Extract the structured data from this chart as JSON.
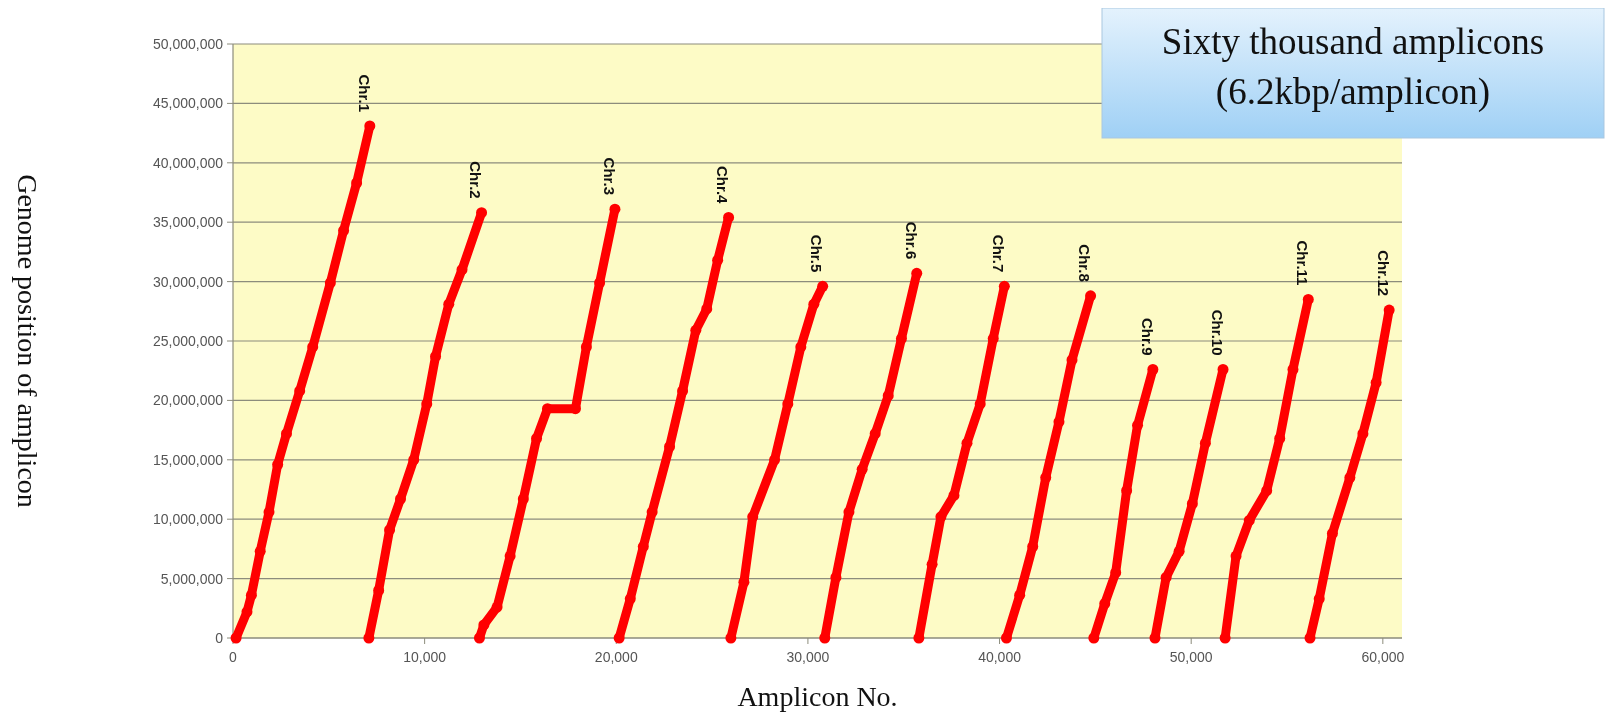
{
  "chart_data": {
    "type": "line",
    "marker": "circle",
    "xlabel": "Amplicon No.",
    "ylabel": "Genome position of amplicon",
    "grid": "y",
    "xlim": [
      0,
      61000
    ],
    "ylim": [
      0,
      50000000
    ],
    "xticks": [
      {
        "value": 0,
        "label": "0"
      },
      {
        "value": 10000,
        "label": "10,000"
      },
      {
        "value": 20000,
        "label": "20,000"
      },
      {
        "value": 30000,
        "label": "30,000"
      },
      {
        "value": 40000,
        "label": "40,000"
      },
      {
        "value": 50000,
        "label": "50,000"
      },
      {
        "value": 60000,
        "label": "60,000"
      }
    ],
    "yticks": [
      {
        "value": 0,
        "label": "0"
      },
      {
        "value": 5000000,
        "label": "5,000,000"
      },
      {
        "value": 10000000,
        "label": "10,000,000"
      },
      {
        "value": 15000000,
        "label": "15,000,000"
      },
      {
        "value": 20000000,
        "label": "20,000,000"
      },
      {
        "value": 25000000,
        "label": "25,000,000"
      },
      {
        "value": 30000000,
        "label": "30,000,000"
      },
      {
        "value": 35000000,
        "label": "35,000,000"
      },
      {
        "value": 40000000,
        "label": "40,000,000"
      },
      {
        "value": 45000000,
        "label": "45,000,000"
      },
      {
        "value": 50000000,
        "label": "50,000,000"
      }
    ],
    "series": [
      {
        "color": "#ff0000",
        "x": [
          160,
          730,
          960,
          1420,
          1880,
          2330,
          2790,
          3480,
          4160,
          5080,
          5770,
          6450,
          7140
        ],
        "values": [
          0,
          2200000,
          3600000,
          7300000,
          10600000,
          14600000,
          17200000,
          20800000,
          24500000,
          29900000,
          34300000,
          38300000,
          43100000
        ]
      },
      {
        "color": "#ff0000",
        "x": [
          7090,
          7600,
          8170,
          8740,
          9430,
          10110,
          10570,
          11260,
          11950,
          12970
        ],
        "values": [
          0,
          4000000,
          9100000,
          11700000,
          15000000,
          19700000,
          23700000,
          28100000,
          31000000,
          35800000
        ]
      },
      {
        "color": "#ff0000",
        "x": [
          12860,
          13090,
          13780,
          14460,
          15150,
          15840,
          16410,
          17870,
          18440,
          19130,
          19930
        ],
        "values": [
          0,
          1100000,
          2600000,
          6900000,
          11700000,
          16800000,
          19300000,
          19300000,
          24500000,
          29900000,
          36100000
        ]
      },
      {
        "color": "#ff0000",
        "x": [
          20150,
          20730,
          21410,
          21870,
          22780,
          23460,
          24150,
          24720,
          25290,
          25860
        ],
        "values": [
          0,
          3300000,
          7700000,
          10600000,
          16100000,
          20800000,
          25900000,
          27700000,
          31800000,
          35400000
        ]
      },
      {
        "color": "#ff0000",
        "x": [
          25980,
          26660,
          27120,
          28260,
          28950,
          29630,
          30310,
          30770
        ],
        "values": [
          0,
          4700000,
          10200000,
          15000000,
          19700000,
          24500000,
          28100000,
          29600000
        ]
      },
      {
        "color": "#ff0000",
        "x": [
          30880,
          31460,
          32140,
          32830,
          33510,
          34190,
          34880,
          35680
        ],
        "values": [
          0,
          5100000,
          10600000,
          14200000,
          17200000,
          20400000,
          25200000,
          30700000
        ]
      },
      {
        "color": "#ff0000",
        "x": [
          35790,
          36480,
          36940,
          37620,
          38300,
          38990,
          39670,
          40250
        ],
        "values": [
          0,
          6200000,
          10200000,
          12000000,
          16400000,
          19700000,
          25200000,
          29600000
        ]
      },
      {
        "color": "#ff0000",
        "x": [
          40360,
          41050,
          41730,
          42410,
          43100,
          43780,
          44750
        ],
        "values": [
          0,
          3600000,
          7700000,
          13500000,
          18200000,
          23400000,
          28800000
        ]
      },
      {
        "color": "#ff0000",
        "x": [
          44920,
          45490,
          46060,
          46630,
          47200,
          48000
        ],
        "values": [
          0,
          2900000,
          5500000,
          12400000,
          17900000,
          22600000
        ]
      },
      {
        "color": "#ff0000",
        "x": [
          48110,
          48690,
          49370,
          50060,
          50740,
          51660
        ],
        "values": [
          0,
          5100000,
          7300000,
          11300000,
          16400000,
          22600000
        ]
      },
      {
        "color": "#ff0000",
        "x": [
          51770,
          52340,
          53030,
          53940,
          54620,
          55310,
          56110
        ],
        "values": [
          0,
          6900000,
          9900000,
          12400000,
          16800000,
          22600000,
          28500000
        ]
      },
      {
        "color": "#ff0000",
        "x": [
          56200,
          56680,
          57370,
          58280,
          58960,
          59650,
          60330
        ],
        "values": [
          0,
          3300000,
          8800000,
          13500000,
          17200000,
          21500000,
          27600000
        ]
      }
    ],
    "annotations": [
      "Sixty thousand amplicons\n(6.2kbp/amplicon)",
      {
        "text": "Chr.1",
        "x": 7140,
        "y": 43100000
      },
      {
        "text": "Chr.2",
        "x": 12970,
        "y": 35800000
      },
      {
        "text": "Chr.3",
        "x": 19930,
        "y": 36100000
      },
      {
        "text": "Chr.4",
        "x": 25860,
        "y": 35400000
      },
      {
        "text": "Chr.5",
        "x": 30770,
        "y": 29600000
      },
      {
        "text": "Chr.6",
        "x": 35680,
        "y": 30700000
      },
      {
        "text": "Chr.7",
        "x": 40250,
        "y": 29600000
      },
      {
        "text": "Chr.8",
        "x": 44750,
        "y": 28800000
      },
      {
        "text": "Chr.9",
        "x": 48000,
        "y": 22600000
      },
      {
        "text": "Chr.10",
        "x": 51660,
        "y": 22600000
      },
      {
        "text": "Chr.11",
        "x": 56110,
        "y": 28500000
      },
      {
        "text": "Chr.12",
        "x": 60330,
        "y": 27600000
      }
    ]
  }
}
